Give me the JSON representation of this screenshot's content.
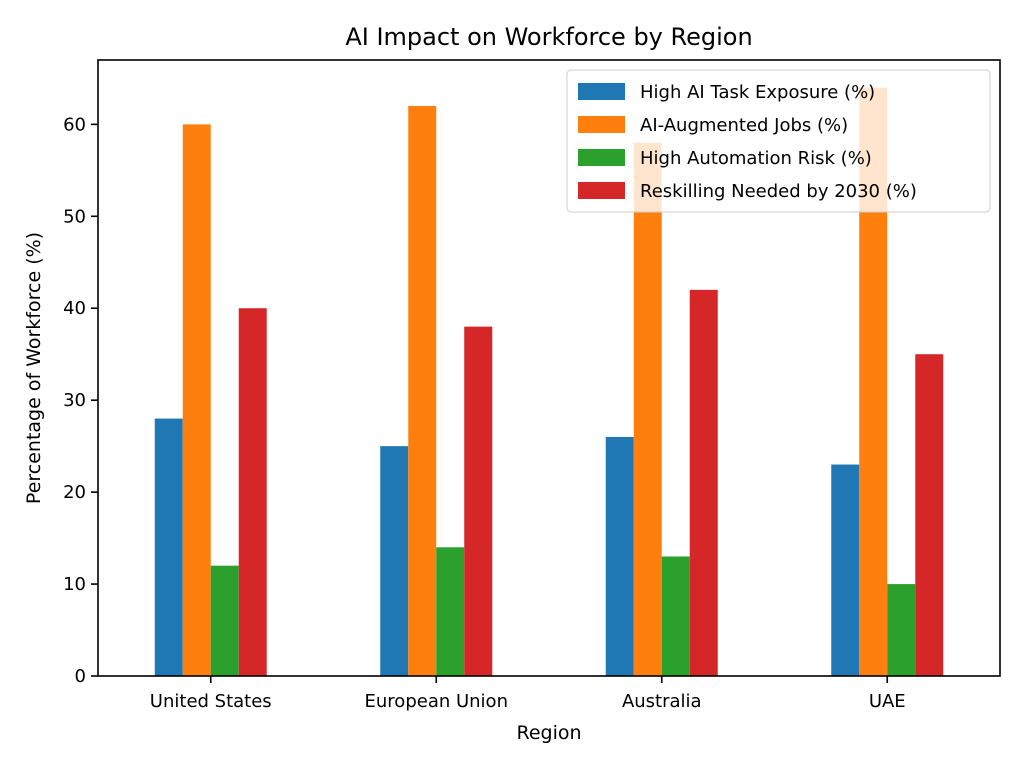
{
  "chart_data": {
    "type": "bar",
    "title": "AI Impact on Workforce by Region",
    "xlabel": "Region",
    "ylabel": "Percentage of Workforce (%)",
    "categories": [
      "United States",
      "European Union",
      "Australia",
      "UAE"
    ],
    "ylim": [
      0,
      67
    ],
    "yticks": [
      0,
      10,
      20,
      30,
      40,
      50,
      60
    ],
    "grid": false,
    "legend_position": "top-right",
    "series": [
      {
        "name": "High AI Task Exposure (%)",
        "color": "#1f77b4",
        "values": [
          28,
          25,
          26,
          23
        ]
      },
      {
        "name": "AI-Augmented Jobs (%)",
        "color": "#ff7f0e",
        "values": [
          60,
          62,
          58,
          64
        ]
      },
      {
        "name": "High Automation Risk (%)",
        "color": "#2ca02c",
        "values": [
          12,
          14,
          13,
          10
        ]
      },
      {
        "name": "Reskilling Needed by 2030 (%)",
        "color": "#d62728",
        "values": [
          40,
          38,
          42,
          35
        ]
      }
    ]
  }
}
